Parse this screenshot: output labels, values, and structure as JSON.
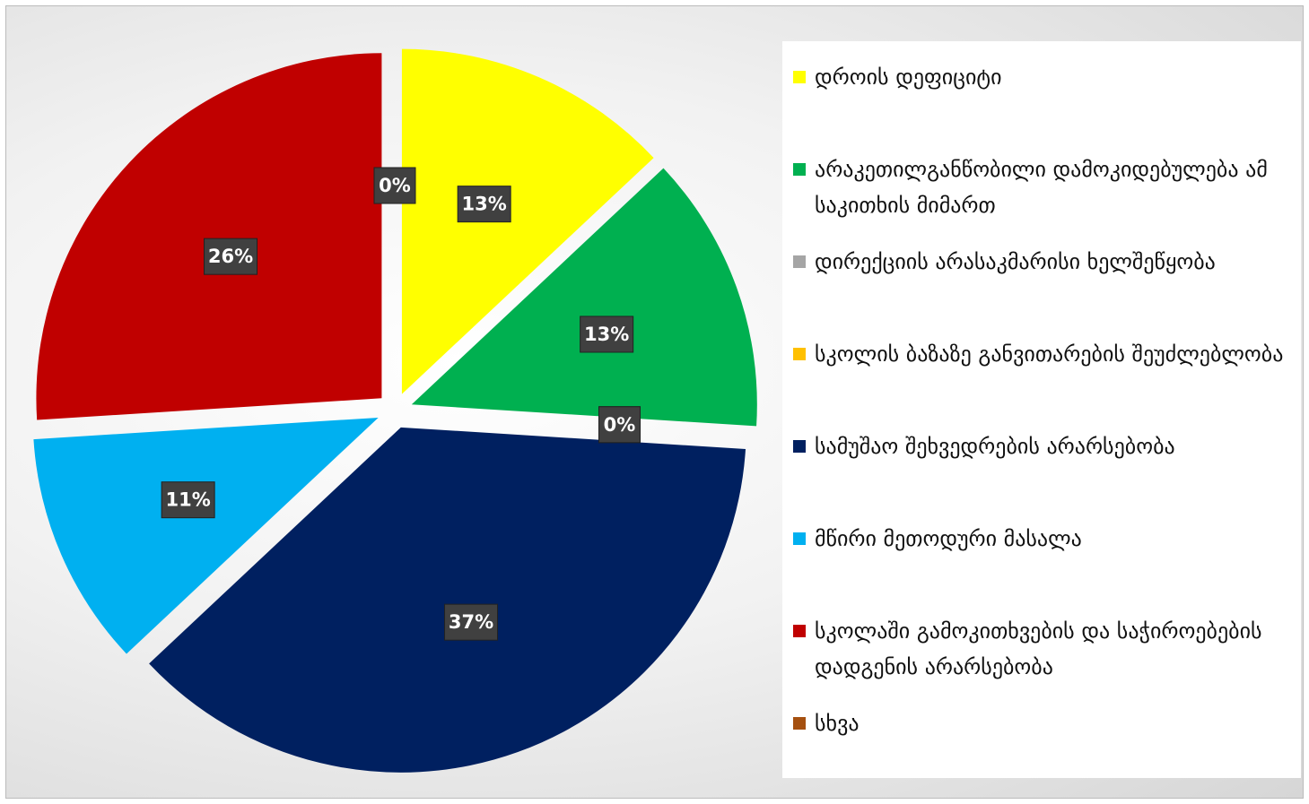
{
  "chart_data": {
    "type": "pie",
    "categories": [
      "დროის დეფიციტი",
      "არაკეთილგანწობილი დამოკიდებულება ამ საკითხის მიმართ",
      "დირექციის არასაკმარისი ხელშეწყობა",
      "სკოლის ბაზაზე განვითარების შეუძლებლობა",
      "სამუშაო შეხვედრების არარსებობა",
      "მწირი მეთოდური მასალა",
      "სკოლაში გამოკითხვების და საჭიროებების დადგენის არარსებობა",
      "სხვა"
    ],
    "values": [
      13,
      13,
      0,
      0,
      37,
      11,
      26,
      0
    ],
    "value_labels": [
      "13%",
      "13%",
      "0%",
      "0%",
      "37%",
      "11%",
      "26%",
      "0%"
    ],
    "colors": [
      "#ffff00",
      "#00b050",
      "#a5a5a5",
      "#ffc000",
      "#002060",
      "#00b0f0",
      "#c00000",
      "#a5500f"
    ],
    "legend": "right"
  }
}
